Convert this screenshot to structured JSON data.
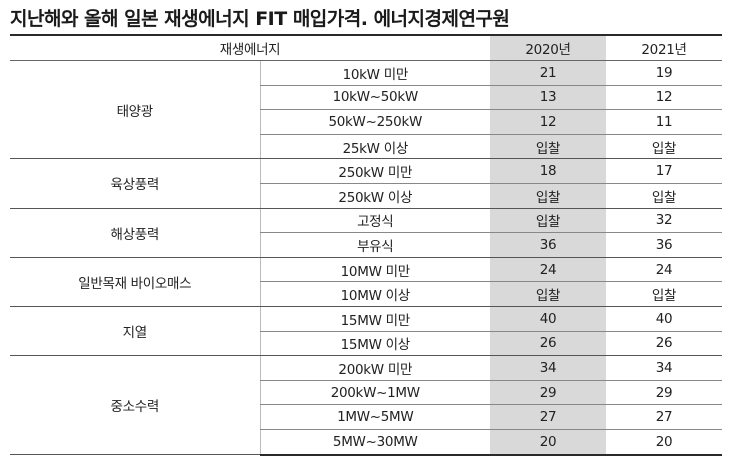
{
  "title": "지난해와 올해 일본 재생에너지 FIT 매입가격. 에너지경제연구원",
  "table": {
    "headers": {
      "category": "재생에너지",
      "year1": "2020년",
      "year2": "2021년"
    },
    "groups": [
      {
        "name": "태양광",
        "rows": [
          {
            "sub": "10kW 미만",
            "y2020": "21",
            "y2021": "19"
          },
          {
            "sub": "10kW~50kW",
            "y2020": "13",
            "y2021": "12"
          },
          {
            "sub": "50kW~250kW",
            "y2020": "12",
            "y2021": "11"
          },
          {
            "sub": "25kW 이상",
            "y2020": "입찰",
            "y2021": "입찰"
          }
        ]
      },
      {
        "name": "육상풍력",
        "rows": [
          {
            "sub": "250kW 미만",
            "y2020": "18",
            "y2021": "17"
          },
          {
            "sub": "250kW 이상",
            "y2020": "입찰",
            "y2021": "입찰"
          }
        ]
      },
      {
        "name": "해상풍력",
        "rows": [
          {
            "sub": "고정식",
            "y2020": "입찰",
            "y2021": "32"
          },
          {
            "sub": "부유식",
            "y2020": "36",
            "y2021": "36"
          }
        ]
      },
      {
        "name": "일반목재 바이오매스",
        "rows": [
          {
            "sub": "10MW 미만",
            "y2020": "24",
            "y2021": "24"
          },
          {
            "sub": "10MW 이상",
            "y2020": "입찰",
            "y2021": "입찰"
          }
        ]
      },
      {
        "name": "지열",
        "rows": [
          {
            "sub": "15MW 미만",
            "y2020": "40",
            "y2021": "40"
          },
          {
            "sub": "15MW 이상",
            "y2020": "26",
            "y2021": "26"
          }
        ]
      },
      {
        "name": "중소수력",
        "rows": [
          {
            "sub": "200kW 미만",
            "y2020": "34",
            "y2021": "34"
          },
          {
            "sub": "200kW~1MW",
            "y2020": "29",
            "y2021": "29"
          },
          {
            "sub": "1MW~5MW",
            "y2020": "27",
            "y2021": "27"
          },
          {
            "sub": "5MW~30MW",
            "y2020": "20",
            "y2021": "20"
          }
        ]
      }
    ]
  },
  "colors": {
    "shaded_column": "#d9d9d9",
    "rule_dark": "#2a2a2a"
  }
}
